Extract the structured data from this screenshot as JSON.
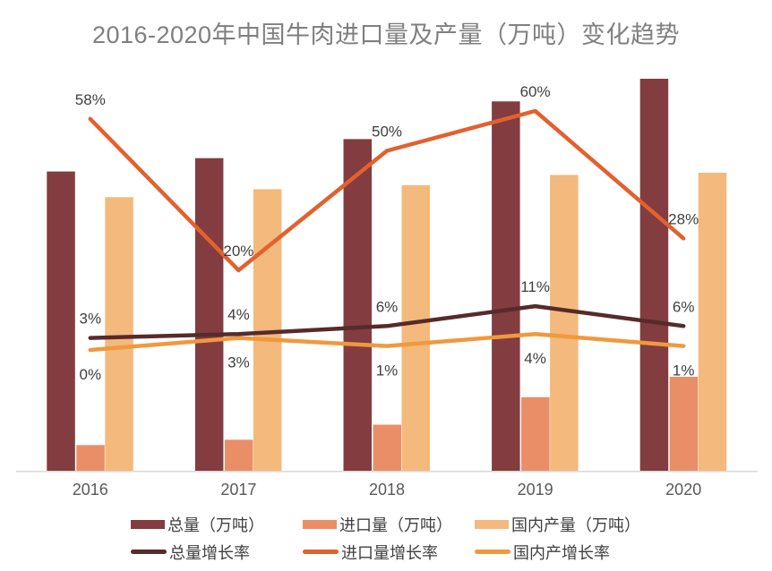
{
  "title": "2016-2020年中国牛肉进口量及产量（万吨）变化趋势",
  "colors": {
    "background": "#FFFFFF",
    "title_text": "#7F7F7F",
    "point_label_text": "#3F3F3F",
    "tick_label_text": "#595959",
    "axis_line": "#D9D9D9",
    "total_bar": "#833C40",
    "import_bar": "#EA8E68",
    "domestic_bar": "#F4B97C",
    "total_line": "#572A2B",
    "import_line": "#E2612E",
    "domestic_line": "#F0993D"
  },
  "chart_data": {
    "type": "combo-bar-line",
    "title": "2016-2020年中国牛肉进口量及产量（万吨）变化趋势",
    "categories": [
      "2016",
      "2017",
      "2018",
      "2019",
      "2020"
    ],
    "grid": "off",
    "value_axis_visible": false,
    "legend_position": "bottom",
    "bar_series": [
      {
        "key": "total_volume",
        "name": "总量（万吨）",
        "color": "#833C40",
        "values": [
          675,
          705,
          748,
          833,
          884
        ]
      },
      {
        "key": "import_volume",
        "name": "进口量（万吨）",
        "color": "#EA8E68",
        "values": [
          58,
          70,
          104,
          166,
          212
        ]
      },
      {
        "key": "domestic_production",
        "name": "国内产量（万吨）",
        "color": "#F4B97C",
        "values": [
          617,
          635,
          644,
          667,
          672
        ]
      }
    ],
    "line_series": [
      {
        "key": "domestic_growth",
        "name": "国内产增长率",
        "color": "#F0993D",
        "label_side": "below",
        "values_pct": [
          0,
          3,
          1,
          4,
          1
        ],
        "point_labels": [
          "0%",
          "3%",
          "1%",
          "4%",
          "1%"
        ]
      },
      {
        "key": "total_growth",
        "name": "总量增长率",
        "color": "#572A2B",
        "label_side": "above",
        "values_pct": [
          3,
          4,
          6,
          11,
          6
        ],
        "point_labels": [
          "3%",
          "4%",
          "6%",
          "11%",
          "6%"
        ]
      },
      {
        "key": "import_growth",
        "name": "进口量增长率",
        "color": "#E2612E",
        "label_side": "above",
        "values_pct": [
          58,
          20,
          50,
          60,
          28
        ],
        "point_labels": [
          "58%",
          "20%",
          "50%",
          "60%",
          "28%"
        ]
      }
    ],
    "bar_axis_range": [
      0,
      950
    ],
    "pct_axis_zero_note": "growth-rate lines share a hidden percentage axis"
  },
  "legend": {
    "rows": [
      {
        "items": [
          {
            "label": "总量（万吨）",
            "swatch": "bar",
            "color": "#833C40"
          },
          {
            "label": "进口量（万吨）",
            "swatch": "bar",
            "color": "#EA8E68"
          },
          {
            "label": "国内产量（万吨）",
            "swatch": "bar",
            "color": "#F4B97C"
          }
        ]
      },
      {
        "items": [
          {
            "label": "总量增长率",
            "swatch": "line",
            "color": "#572A2B"
          },
          {
            "label": "进口量增长率",
            "swatch": "line",
            "color": "#E2612E"
          },
          {
            "label": "国内产增长率",
            "swatch": "line",
            "color": "#F0993D"
          }
        ]
      }
    ]
  }
}
